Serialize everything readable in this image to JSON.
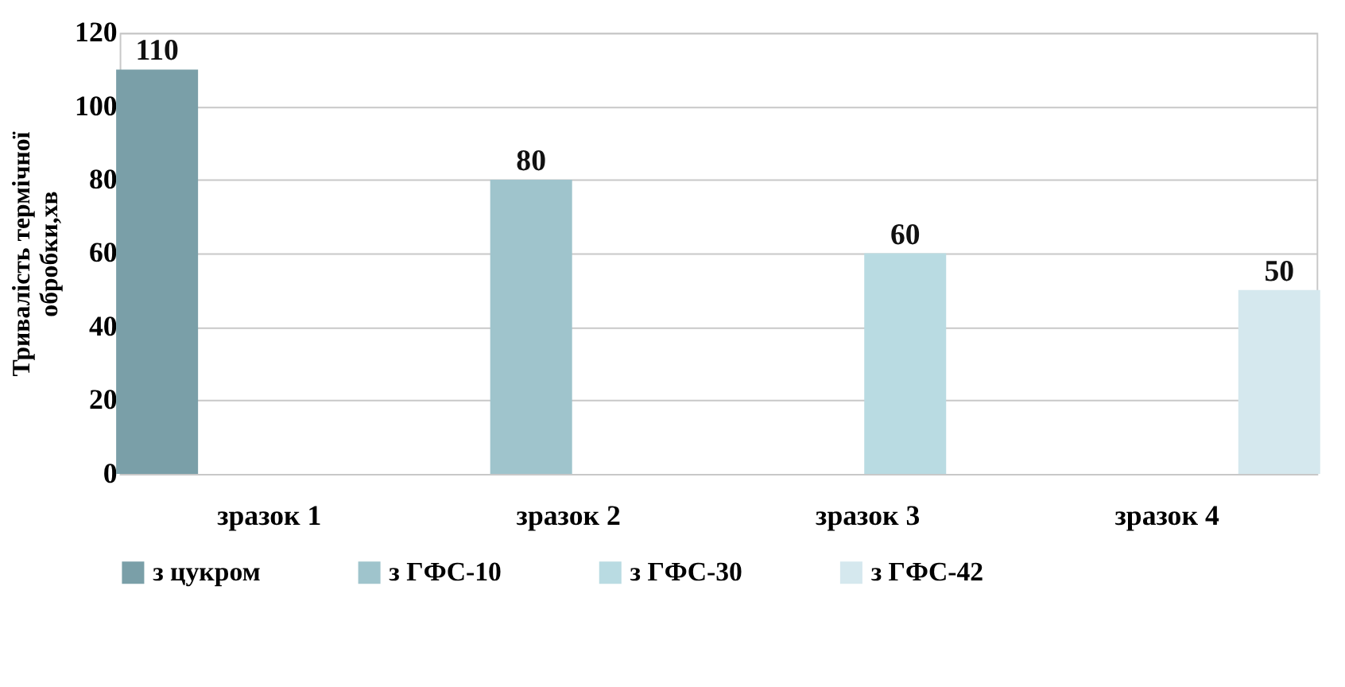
{
  "chart_data": {
    "type": "bar",
    "ylabel": "Тривалість термічної обробки,хв",
    "categories": [
      "зразок 1",
      "зразок 2",
      "зразок 3",
      "зразок 4"
    ],
    "series": [
      {
        "name": "з цукром",
        "color": "#7a9fa8",
        "values": [
          110,
          null,
          null,
          null
        ]
      },
      {
        "name": "з ГФС-10",
        "color": "#9fc4cc",
        "values": [
          null,
          80,
          null,
          null
        ]
      },
      {
        "name": "з ГФС-30",
        "color": "#b9dbe2",
        "values": [
          null,
          null,
          60,
          null
        ]
      },
      {
        "name": "з ГФС-42",
        "color": "#d5e8ee",
        "values": [
          null,
          null,
          null,
          50
        ]
      }
    ],
    "ylim": [
      0,
      120
    ],
    "yticks": [
      0,
      20,
      40,
      60,
      80,
      100,
      120
    ],
    "grid": "y",
    "legend": "bottom",
    "data_labels": true
  }
}
